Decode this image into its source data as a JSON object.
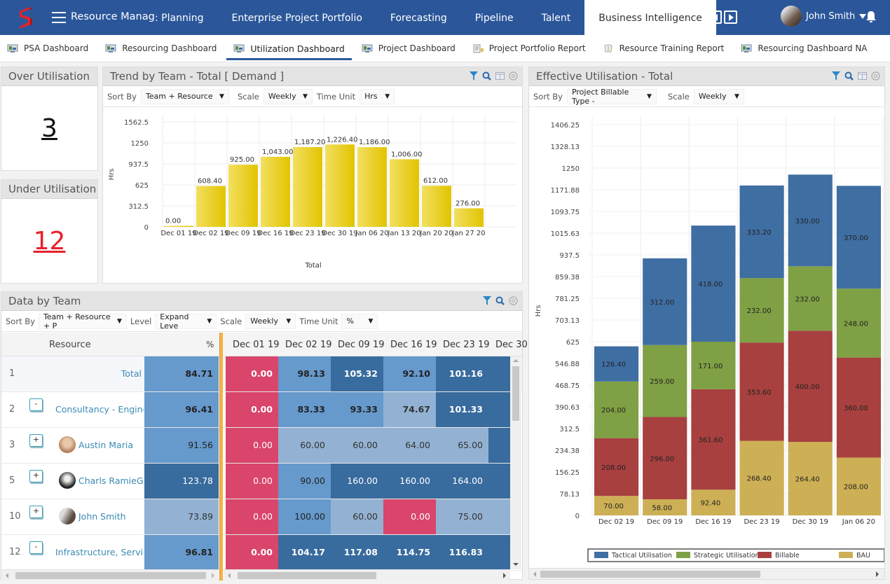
{
  "app": {
    "title": "Resource Manager PSA",
    "nav": [
      {
        "label": ": Planning"
      },
      {
        "label": "Enterprise Project Portfolio"
      },
      {
        "label": "Forecasting"
      },
      {
        "label": "Pipeline"
      },
      {
        "label": "Talent"
      },
      {
        "label": "Business Intelligence",
        "active": true
      }
    ],
    "user": {
      "name": "John Smith"
    }
  },
  "subnav": [
    {
      "label": "PSA Dashboard",
      "icon": "dashboard-icon"
    },
    {
      "label": "Resourcing Dashboard",
      "icon": "dashboard-icon"
    },
    {
      "label": "Utilization Dashboard",
      "icon": "dashboard-icon",
      "active": true
    },
    {
      "label": "Project Dashboard",
      "icon": "dashboard-icon"
    },
    {
      "label": "Project Portfolio Report",
      "icon": "report-icon"
    },
    {
      "label": "Resource Training Report",
      "icon": "training-icon"
    },
    {
      "label": "Resourcing Dashboard NA",
      "icon": "dashboard-icon"
    }
  ],
  "over_utilisation": {
    "title": "Over Utilisation",
    "value": "3"
  },
  "under_utilisation": {
    "title": "Under Utilisation",
    "value": "12"
  },
  "trend_panel": {
    "title": "Trend by Team - Total [ Demand ]",
    "sort_by_label": "Sort By",
    "sort_by": "Team + Resource",
    "scale_label": "Scale",
    "scale": "Weekly",
    "time_unit_label": "Time Unit",
    "time_unit": "Hrs"
  },
  "effective_panel": {
    "title": "Effective Utilisation - Total",
    "sort_by_label": "Sort By",
    "sort_by": "Project Billable Type -",
    "scale_label": "Scale",
    "scale": "Weekly"
  },
  "team_panel": {
    "title": "Data by Team",
    "sort_by_label": "Sort By",
    "sort_by": "Team + Resource + P",
    "level_label": "Level",
    "level": "Expand Leve",
    "scale_label": "Scale",
    "scale": "Weekly",
    "time_unit_label": "Time Unit",
    "time_unit": "%",
    "columns": {
      "resource": "Resource",
      "pct": "%",
      "weeks": [
        "Dec 01 19",
        "Dec 02 19",
        "Dec 09 19",
        "Dec 16 19",
        "Dec 23 19",
        "Dec 30"
      ]
    },
    "rows": [
      {
        "num": "1",
        "name": "Total",
        "expander": "",
        "avatar": false,
        "pct": "84.71",
        "pct_tone": "blue",
        "bold": true,
        "cells": [
          {
            "v": "0.00",
            "t": "red"
          },
          {
            "v": "98.13",
            "t": "blue"
          },
          {
            "v": "105.32",
            "t": "dark"
          },
          {
            "v": "92.10",
            "t": "blue"
          },
          {
            "v": "101.16",
            "t": "dark"
          }
        ]
      },
      {
        "num": "2",
        "name": "Consultancy - Engineer",
        "expander": "-",
        "avatar": false,
        "pct": "96.41",
        "pct_tone": "blue",
        "bold": true,
        "cells": [
          {
            "v": "0.00",
            "t": "red"
          },
          {
            "v": "83.33",
            "t": "blue"
          },
          {
            "v": "93.33",
            "t": "blue"
          },
          {
            "v": "74.67",
            "t": "light"
          },
          {
            "v": "101.33",
            "t": "dark"
          }
        ]
      },
      {
        "num": "3",
        "name": "Austin Maria",
        "expander": "+",
        "avatar": true,
        "pct": "91.56",
        "pct_tone": "blue",
        "bold": false,
        "cells": [
          {
            "v": "0.00",
            "t": "red"
          },
          {
            "v": "60.00",
            "t": "light"
          },
          {
            "v": "60.00",
            "t": "light"
          },
          {
            "v": "64.00",
            "t": "light"
          },
          {
            "v": "65.00",
            "t": "light"
          }
        ]
      },
      {
        "num": "5",
        "name": "Charls RamieG",
        "expander": "+",
        "avatar": true,
        "pct": "123.78",
        "pct_tone": "dark",
        "bold": false,
        "cells": [
          {
            "v": "0.00",
            "t": "red"
          },
          {
            "v": "90.00",
            "t": "blue"
          },
          {
            "v": "160.00",
            "t": "dark"
          },
          {
            "v": "160.00",
            "t": "dark"
          },
          {
            "v": "164.00",
            "t": "dark"
          }
        ]
      },
      {
        "num": "10",
        "name": "John Smith",
        "expander": "+",
        "avatar": true,
        "pct": "73.89",
        "pct_tone": "light",
        "bold": false,
        "cells": [
          {
            "v": "0.00",
            "t": "red"
          },
          {
            "v": "100.00",
            "t": "blue"
          },
          {
            "v": "60.00",
            "t": "light"
          },
          {
            "v": "0.00",
            "t": "red"
          },
          {
            "v": "75.00",
            "t": "light"
          }
        ]
      },
      {
        "num": "12",
        "name": "Infrastructure, Service/",
        "expander": "-",
        "avatar": false,
        "pct": "96.81",
        "pct_tone": "blue",
        "bold": true,
        "cells": [
          {
            "v": "0.00",
            "t": "red"
          },
          {
            "v": "104.17",
            "t": "dark"
          },
          {
            "v": "117.08",
            "t": "dark"
          },
          {
            "v": "114.75",
            "t": "dark"
          },
          {
            "v": "116.83",
            "t": "dark"
          }
        ]
      }
    ]
  },
  "colors": {
    "brand": "#2b579a",
    "bar_yellow": "#e8c800",
    "tactical": "#3f6ea3",
    "strategic": "#7fa044",
    "billable": "#a84040",
    "bau": "#cdb055",
    "cell_red": "#d9456b",
    "cell_blue": "#6699cc",
    "cell_dark": "#386b9e",
    "cell_light": "#93b2d3"
  },
  "chart_data": [
    {
      "type": "bar",
      "title": "Trend by Team - Total [ Demand ]",
      "xlabel": "Total",
      "ylabel": "Hrs",
      "categories": [
        "Dec 01 19",
        "Dec 02 19",
        "Dec 09 19",
        "Dec 16 19",
        "Dec 23 19",
        "Dec 30 19",
        "Jan 06 20",
        "Jan 13 20",
        "Jan 20 20",
        "Jan 27 20"
      ],
      "values": [
        0.0,
        608.4,
        925.0,
        1043.0,
        1187.2,
        1226.4,
        1186.0,
        1006.0,
        612.0,
        276.0
      ],
      "value_labels": [
        "0.00",
        "608.40",
        "925.00",
        "1,043.00",
        "1,187.20",
        "1,226.40",
        "1,186.00",
        "1,006.00",
        "612.00",
        "276.00"
      ],
      "yticks": [
        "0",
        "312.5",
        "625",
        "937.5",
        "1250",
        "1562.5"
      ],
      "ylim": [
        0,
        1562.5
      ],
      "grid": true
    },
    {
      "type": "bar",
      "stacked": true,
      "title": "Effective Utilisation - Total",
      "ylabel": "Hrs",
      "categories": [
        "Dec 02 19",
        "Dec 09 19",
        "Dec 16 19",
        "Dec 23 19",
        "Dec 30 19",
        "Jan 06 20"
      ],
      "series": [
        {
          "name": "BAU",
          "values": [
            70.0,
            58.0,
            92.4,
            268.4,
            264.4,
            208.0
          ]
        },
        {
          "name": "Billable",
          "values": [
            208.0,
            296.0,
            361.6,
            353.6,
            400.0,
            360.0
          ]
        },
        {
          "name": "Strategic Utilisation",
          "values": [
            204.0,
            259.0,
            171.0,
            232.0,
            232.0,
            248.0
          ]
        },
        {
          "name": "Tactical Utilisation",
          "values": [
            126.4,
            312.0,
            418.0,
            333.2,
            330.0,
            370.0
          ]
        }
      ],
      "legend": [
        "Tactical Utilisation",
        "Strategic Utilisation",
        "Billable",
        "BAU"
      ],
      "legend_position": "bottom",
      "yticks": [
        "0",
        "78.13",
        "156.25",
        "234.38",
        "312.5",
        "390.63",
        "468.75",
        "546.88",
        "625",
        "703.13",
        "781.25",
        "859.38",
        "937.5",
        "1015.63",
        "1093.75",
        "1171.88",
        "1250",
        "1328.13",
        "1406.25"
      ],
      "ylim": [
        0,
        1406.25
      ],
      "grid": true
    }
  ]
}
